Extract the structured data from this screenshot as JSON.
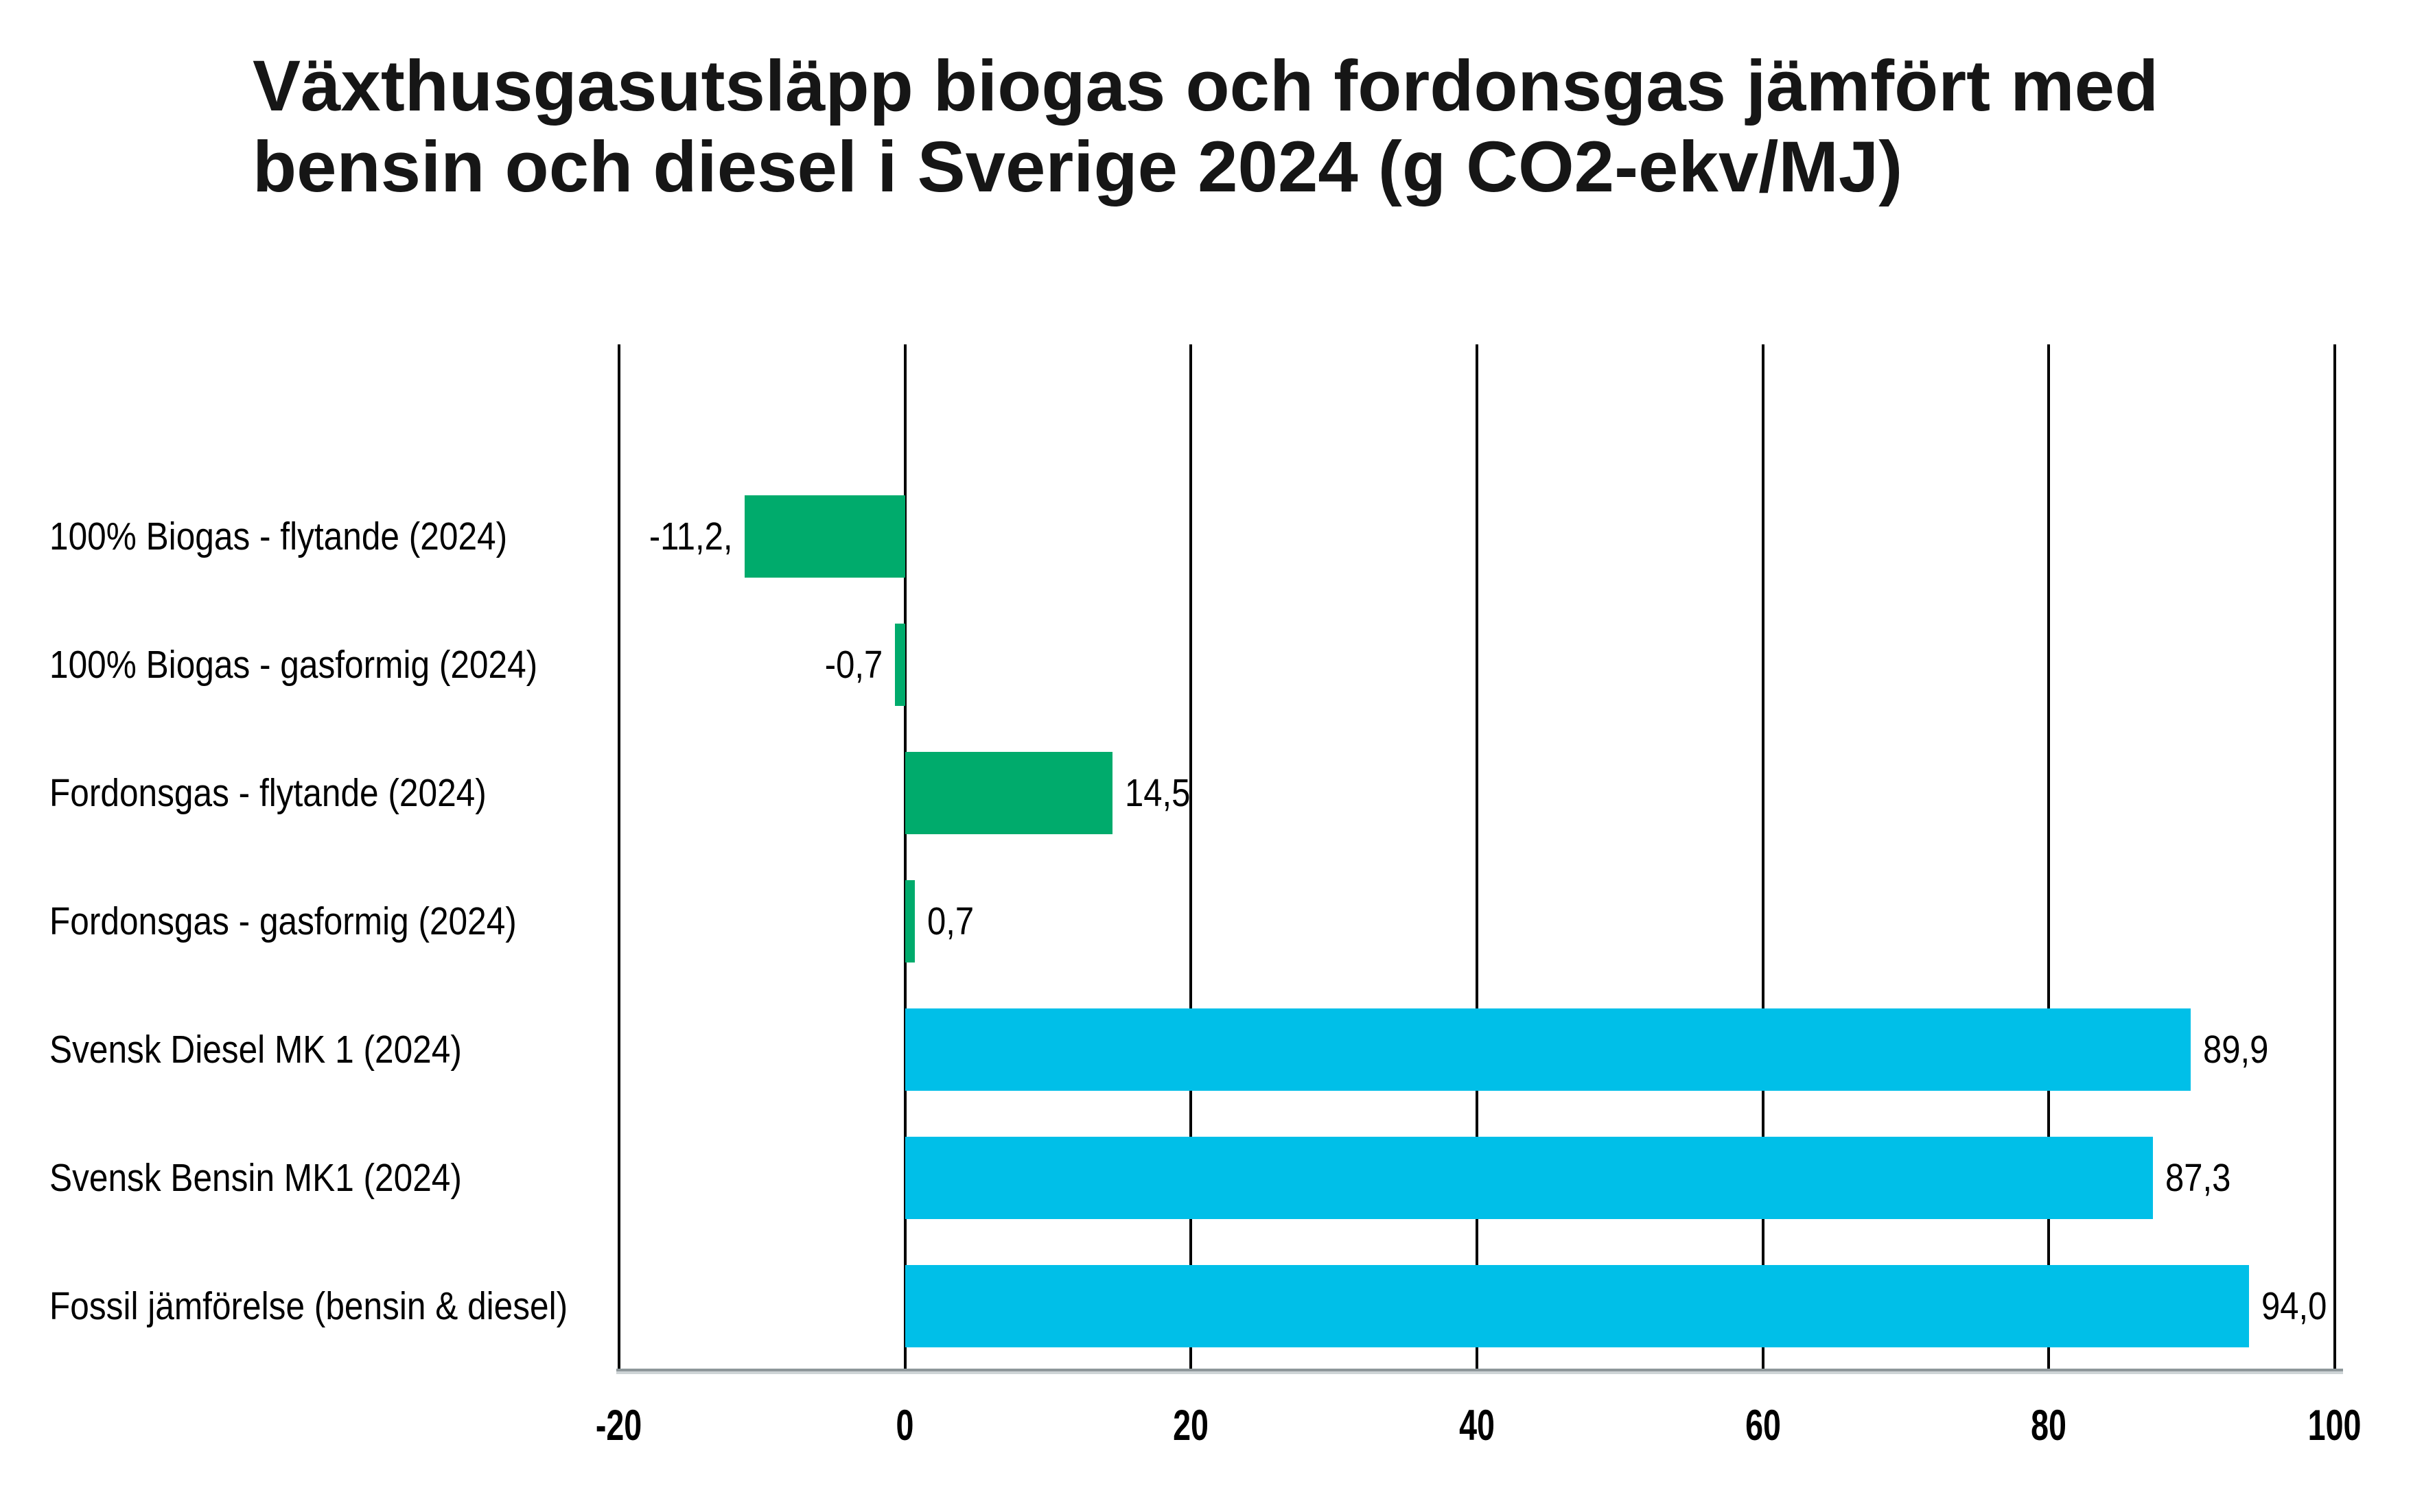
{
  "title": {
    "lines": [
      "Växthusgasutsläpp biogas och fordonsgas jämfört med",
      "bensin och diesel i Sverige 2024 (g CO2-ekv/MJ)"
    ]
  },
  "chart_data": {
    "type": "bar",
    "orientation": "horizontal",
    "title": "Växthusgasutsläpp biogas och fordonsgas jämfört med bensin och diesel i Sverige 2024 (g CO2-ekv/MJ)",
    "unit": "g CO2-ekv/MJ",
    "categories": [
      "100% Biogas - flytande (2024)",
      "100% Biogas - gasformig (2024)",
      "Fordonsgas - flytande (2024)",
      "Fordonsgas - gasformig (2024)",
      "Svensk Diesel MK 1 (2024)",
      "Svensk Bensin MK1 (2024)",
      "Fossil jämförelse (bensin & diesel)"
    ],
    "values": [
      -11.2,
      -0.7,
      14.5,
      0.7,
      89.9,
      87.3,
      94.0
    ],
    "value_labels": [
      "-11,2,",
      "-0,7",
      "14,5",
      "0,7",
      "89,9",
      "87,3",
      "94,0"
    ],
    "bar_colors": [
      "#00AB6C",
      "#00AB6C",
      "#00AB6C",
      "#00AB6C",
      "#00BFE8",
      "#00BFE8",
      "#00BFE8"
    ],
    "colors": {
      "biogas_green": "#00AB6C",
      "fossil_cyan": "#00BFE8",
      "gridline_black": "#000000",
      "axis_gray": "#8E979A",
      "axis_shadow_gray": "#CDD3D5",
      "text_black": "#161616"
    },
    "xlim": [
      -20,
      100
    ],
    "x_ticks": [
      -20,
      0,
      20,
      40,
      60,
      80,
      100
    ],
    "x_tick_labels": [
      "-20",
      "0",
      "20",
      "40",
      "60",
      "80",
      "100"
    ],
    "grid": "vertical-gridlines-on",
    "legend": "none"
  }
}
